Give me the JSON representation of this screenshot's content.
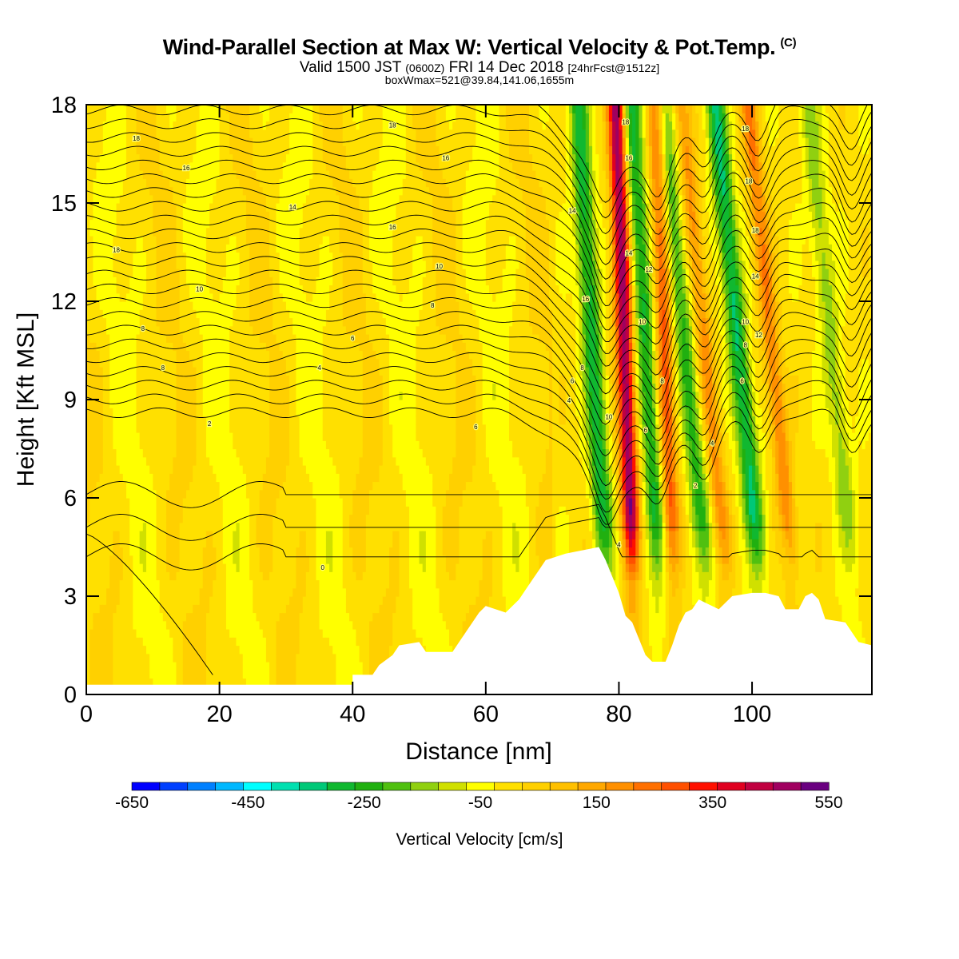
{
  "header": {
    "title": "Wind-Parallel Section at Max W: Vertical Velocity & Pot.Temp.",
    "title_mark": "(C)",
    "subtitle_main": "Valid 1500 JST",
    "subtitle_utc": "(0600Z)",
    "subtitle_date": "FRI 14 Dec 2018",
    "subtitle_fcst": "[24hrFcst@1512z]",
    "subline": "boxWmax=521@39.84,141.06,1655m"
  },
  "chart_data": {
    "type": "heatmap",
    "xlabel": "Distance [nm]",
    "ylabel": "Height [Kft MSL]",
    "xlim": [
      0,
      118
    ],
    "ylim": [
      0,
      18
    ],
    "x_ticks": [
      "0",
      "20",
      "40",
      "60",
      "80",
      "100"
    ],
    "x_tick_values": [
      0,
      20,
      40,
      60,
      80,
      100
    ],
    "y_ticks": [
      "0",
      "3",
      "6",
      "9",
      "12",
      "15",
      "18"
    ],
    "y_tick_values": [
      0,
      3,
      6,
      9,
      12,
      15,
      18
    ],
    "colorbar": {
      "label": "Vertical Velocity [cm/s]",
      "range": [
        -650,
        550
      ],
      "step": 50,
      "tick_labels": [
        "-650",
        "-450",
        "-250",
        "-50",
        "150",
        "350",
        "550"
      ],
      "colors": [
        "#0000ff",
        "#0040ff",
        "#0080ff",
        "#00b8ff",
        "#00ffff",
        "#00e0b0",
        "#00c878",
        "#10b830",
        "#20b010",
        "#50c010",
        "#90d010",
        "#d0e000",
        "#ffff00",
        "#ffe000",
        "#ffd000",
        "#ffc000",
        "#ffa800",
        "#ff9000",
        "#ff7000",
        "#ff5000",
        "#ff1000",
        "#e00020",
        "#c00040",
        "#a00060",
        "#6a0080"
      ]
    },
    "terrain": [
      [
        0,
        0.3
      ],
      [
        40,
        0.3
      ],
      [
        40,
        0.6
      ],
      [
        43,
        0.6
      ],
      [
        44,
        0.9
      ],
      [
        46,
        1.2
      ],
      [
        47,
        1.5
      ],
      [
        50,
        1.6
      ],
      [
        51,
        1.3
      ],
      [
        55,
        1.3
      ],
      [
        56,
        1.6
      ],
      [
        57,
        1.9
      ],
      [
        58,
        2.2
      ],
      [
        59,
        2.5
      ],
      [
        60,
        2.7
      ],
      [
        63,
        2.5
      ],
      [
        64,
        2.7
      ],
      [
        65,
        2.9
      ],
      [
        66,
        3.2
      ],
      [
        67,
        3.5
      ],
      [
        68,
        3.8
      ],
      [
        69,
        4.1
      ],
      [
        72,
        4.3
      ],
      [
        77,
        4.5
      ],
      [
        78,
        4.1
      ],
      [
        80,
        3.1
      ],
      [
        81,
        2.4
      ],
      [
        82,
        2.2
      ],
      [
        84,
        1.2
      ],
      [
        85,
        1.0
      ],
      [
        87,
        1.0
      ],
      [
        88,
        1.5
      ],
      [
        89,
        2.1
      ],
      [
        90,
        2.5
      ],
      [
        91,
        2.6
      ],
      [
        92,
        2.9
      ],
      [
        93,
        2.8
      ],
      [
        95,
        2.6
      ],
      [
        96,
        2.8
      ],
      [
        97,
        3.0
      ],
      [
        100,
        3.1
      ],
      [
        102,
        3.1
      ],
      [
        104,
        3.0
      ],
      [
        105,
        2.6
      ],
      [
        107,
        2.6
      ],
      [
        108,
        3.0
      ],
      [
        109,
        3.1
      ],
      [
        110,
        2.9
      ],
      [
        111,
        2.3
      ],
      [
        114,
        2.2
      ],
      [
        115,
        1.9
      ],
      [
        116,
        1.6
      ],
      [
        118,
        1.5
      ]
    ],
    "updraft_bands": [
      {
        "x": 82,
        "peak": 520
      },
      {
        "x": 88,
        "peak": 300
      },
      {
        "x": 96,
        "peak": 200
      },
      {
        "x": 106,
        "peak": 230
      }
    ],
    "downdraft_bands": [
      {
        "x": 78,
        "peak": -300
      },
      {
        "x": 86,
        "peak": -280
      },
      {
        "x": 93,
        "peak": -240
      },
      {
        "x": 101,
        "peak": -330
      },
      {
        "x": 115,
        "peak": -150
      }
    ],
    "contour_labels": [
      {
        "x": 7.5,
        "y": 16.9,
        "text": "18"
      },
      {
        "x": 15,
        "y": 16.0,
        "text": "16"
      },
      {
        "x": 31,
        "y": 14.8,
        "text": "14"
      },
      {
        "x": 4.5,
        "y": 13.5,
        "text": "18"
      },
      {
        "x": 17,
        "y": 12.3,
        "text": "10"
      },
      {
        "x": 8.5,
        "y": 11.1,
        "text": "8"
      },
      {
        "x": 11.5,
        "y": 9.9,
        "text": "8"
      },
      {
        "x": 18.5,
        "y": 8.2,
        "text": "2"
      },
      {
        "x": 46,
        "y": 17.3,
        "text": "18"
      },
      {
        "x": 54,
        "y": 16.3,
        "text": "16"
      },
      {
        "x": 46,
        "y": 14.2,
        "text": "16"
      },
      {
        "x": 53,
        "y": 13.0,
        "text": "10"
      },
      {
        "x": 52,
        "y": 11.8,
        "text": "8"
      },
      {
        "x": 40,
        "y": 10.8,
        "text": "6"
      },
      {
        "x": 35,
        "y": 9.9,
        "text": "4"
      },
      {
        "x": 58.5,
        "y": 8.1,
        "text": "6"
      },
      {
        "x": 35.5,
        "y": 3.8,
        "text": "0"
      },
      {
        "x": 73,
        "y": 14.7,
        "text": "14"
      },
      {
        "x": 75,
        "y": 12.0,
        "text": "16"
      },
      {
        "x": 74.5,
        "y": 9.9,
        "text": "8"
      },
      {
        "x": 73,
        "y": 9.5,
        "text": "6"
      },
      {
        "x": 72.5,
        "y": 8.9,
        "text": "4"
      },
      {
        "x": 78.5,
        "y": 8.4,
        "text": "10"
      },
      {
        "x": 81,
        "y": 17.4,
        "text": "18"
      },
      {
        "x": 81.5,
        "y": 16.3,
        "text": "16"
      },
      {
        "x": 81.5,
        "y": 13.4,
        "text": "14"
      },
      {
        "x": 84.5,
        "y": 12.9,
        "text": "12"
      },
      {
        "x": 83.5,
        "y": 11.3,
        "text": "10"
      },
      {
        "x": 86.5,
        "y": 9.5,
        "text": "8"
      },
      {
        "x": 84,
        "y": 8.0,
        "text": "6"
      },
      {
        "x": 80,
        "y": 4.5,
        "text": "4"
      },
      {
        "x": 94,
        "y": 7.6,
        "text": "4"
      },
      {
        "x": 91.5,
        "y": 6.3,
        "text": "2"
      },
      {
        "x": 99,
        "y": 17.2,
        "text": "18"
      },
      {
        "x": 99.5,
        "y": 15.6,
        "text": "18"
      },
      {
        "x": 100.5,
        "y": 14.1,
        "text": "18"
      },
      {
        "x": 100.5,
        "y": 12.7,
        "text": "14"
      },
      {
        "x": 99,
        "y": 11.3,
        "text": "10"
      },
      {
        "x": 101,
        "y": 10.9,
        "text": "12"
      },
      {
        "x": 99,
        "y": 10.6,
        "text": "8"
      },
      {
        "x": 98.5,
        "y": 9.5,
        "text": "6"
      }
    ]
  }
}
